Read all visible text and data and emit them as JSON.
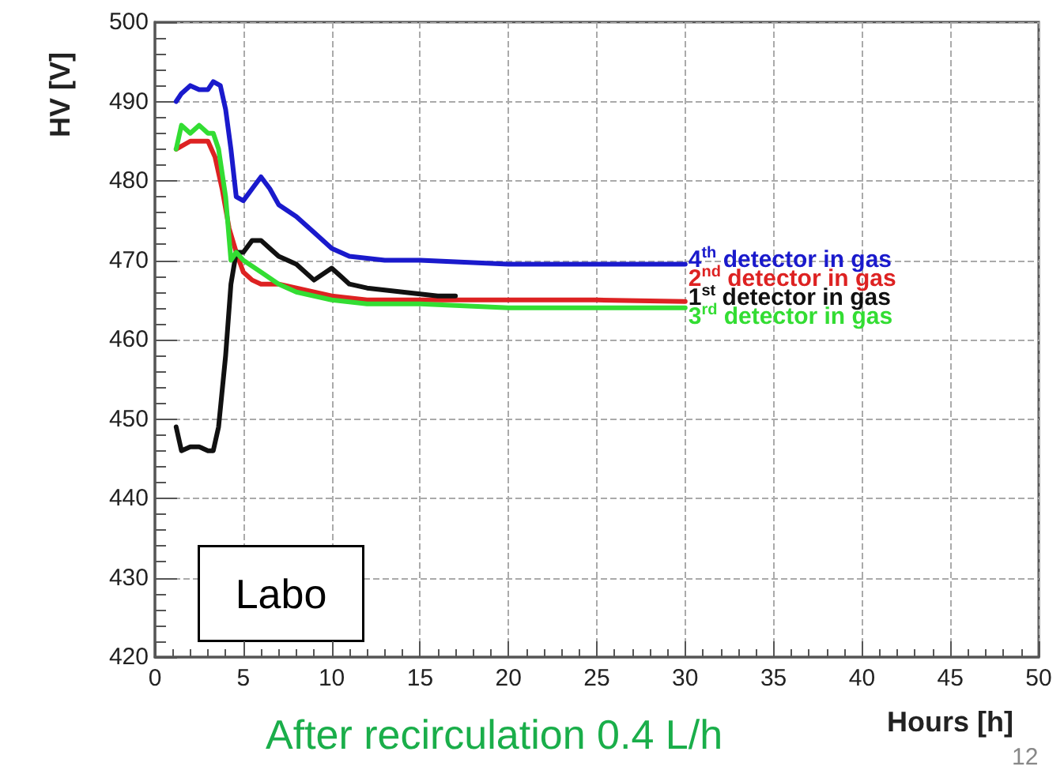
{
  "chart_data": {
    "type": "line",
    "xlabel": "Hours [h]",
    "ylabel": "HV [V]",
    "xlim": [
      0,
      50
    ],
    "xticks": [
      0,
      5,
      10,
      15,
      20,
      25,
      30,
      35,
      40,
      45,
      50
    ],
    "ylim": [
      420,
      500
    ],
    "yticks": [
      420,
      430,
      440,
      450,
      460,
      470,
      480,
      490,
      500
    ],
    "grid": true,
    "legend": false,
    "marker": "none",
    "line_style": "solid",
    "annotations": [
      "Labo",
      "After recirculation 0.4 L/h",
      "12"
    ],
    "series": [
      {
        "name": "4$^{th}$ detector in gas",
        "color": "#1a1acc",
        "x": [
          1.2,
          1.5,
          2,
          2.5,
          3,
          3.3,
          3.7,
          4,
          4.3,
          4.6,
          5,
          5.5,
          6,
          6.5,
          7,
          8,
          9,
          10,
          11,
          13,
          15,
          20,
          25,
          30
        ],
        "values": [
          490,
          491,
          492,
          491.5,
          491.5,
          492.5,
          492,
          489,
          484,
          478,
          477.5,
          479,
          480.5,
          479,
          477,
          475.5,
          473.5,
          471.5,
          470.5,
          470,
          470,
          469.5,
          469.5,
          469.5
        ]
      },
      {
        "name": "2$^{nd}$ detector in gas",
        "color": "#dd2222",
        "x": [
          1.2,
          2,
          3,
          3.4,
          3.8,
          4.2,
          4.6,
          5,
          5.5,
          6,
          7,
          8,
          10,
          12,
          15,
          20,
          25,
          30
        ],
        "values": [
          484,
          485,
          485,
          483,
          479,
          474,
          471,
          468.5,
          467.5,
          467,
          467,
          466.5,
          465.5,
          465,
          465,
          465,
          465,
          464.8
        ]
      },
      {
        "name": "1$^{st}$ detector in gas",
        "color": "#111111",
        "x": [
          1.2,
          1.5,
          2,
          2.5,
          3,
          3.3,
          3.6,
          4,
          4.3,
          4.6,
          5,
          5.5,
          6,
          6.5,
          7,
          8,
          9,
          10,
          10.5,
          11,
          12,
          14,
          16,
          17
        ],
        "values": [
          449,
          446,
          446.5,
          446.5,
          446,
          446,
          449,
          458,
          467,
          471,
          471,
          472.5,
          472.5,
          471.5,
          470.5,
          469.5,
          467.5,
          469,
          468,
          467,
          466.5,
          466,
          465.5,
          465.5
        ]
      },
      {
        "name": "3$^{rd}$ detector in gas",
        "color": "#33dd33",
        "x": [
          1.2,
          1.5,
          2,
          2.5,
          3,
          3.3,
          3.6,
          4,
          4.3,
          4.6,
          5,
          6,
          7,
          8,
          10,
          12,
          15,
          20,
          25,
          30
        ],
        "values": [
          484,
          487,
          486,
          487,
          486,
          486,
          484,
          478,
          470,
          471,
          470,
          468.5,
          467,
          466,
          465,
          464.5,
          464.5,
          464,
          464,
          464
        ]
      }
    ]
  }
}
